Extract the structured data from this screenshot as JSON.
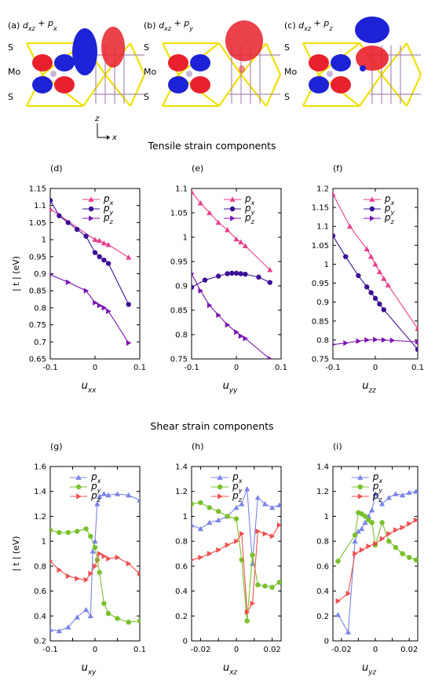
{
  "headings": {
    "tensile": "Tensile strain components",
    "shear": "Shear strain components"
  },
  "orbital_panels": [
    {
      "letter": "(a)",
      "label": "d",
      "sub": "xz",
      "plus": " + p",
      "psub": "x"
    },
    {
      "letter": "(b)",
      "label": "d",
      "sub": "xz",
      "plus": " + p",
      "psub": "y"
    },
    {
      "letter": "(c)",
      "label": "d",
      "sub": "xz",
      "plus": " + p",
      "psub": "z"
    }
  ],
  "atom_labels": [
    "S",
    "Mo",
    "S"
  ],
  "axes_indicator": {
    "z": "z",
    "x": "x"
  },
  "colors": {
    "px": "#ea3d8c",
    "py": "#3c1096",
    "pz": "#7a14b0",
    "px_shear": "#7b84e8",
    "py_shear": "#79c12c",
    "pz_shear": "#f04e4e",
    "lobe_red": "#e8212c",
    "lobe_blue": "#1e22d6",
    "bond_yellow": "#f0e000",
    "bond_purple": "#a98ab8"
  },
  "chart_data": [
    {
      "panel": "(d)",
      "type": "line",
      "xlabel_main": "u",
      "xlabel_sub": "xx",
      "ylabel": "| t | (eV)",
      "xlim": [
        -0.1,
        0.1
      ],
      "ylim": [
        0.65,
        1.15
      ],
      "xticks": [
        -0.1,
        0,
        0.1
      ],
      "xtick_labels": [
        "-0.1",
        "0",
        "0.1"
      ],
      "yticks": [
        0.65,
        0.7,
        0.75,
        0.8,
        0.85,
        0.9,
        0.95,
        1,
        1.05,
        1.1,
        1.15
      ],
      "ytick_labels": [
        "0.65",
        "0.7",
        "0.75",
        "0.8",
        "0.85",
        "0.9",
        "0.95",
        "1",
        "1.05",
        "1.1",
        "1.15"
      ],
      "legend": "top-right",
      "series": [
        {
          "name": "p",
          "sub": "x",
          "marker": "tri-up",
          "color": "#ea3d8c",
          "x": [
            -0.1,
            0,
            0.01,
            0.02,
            0.03,
            0.075
          ],
          "y": [
            1.09,
            1.0,
            0.997,
            0.99,
            0.985,
            0.948
          ]
        },
        {
          "name": "p",
          "sub": "y",
          "marker": "circle",
          "color": "#3c1096",
          "x": [
            -0.1,
            -0.08,
            -0.06,
            -0.04,
            -0.02,
            0,
            0.01,
            0.02,
            0.03,
            0.075
          ],
          "y": [
            1.115,
            1.07,
            1.05,
            1.03,
            1.01,
            0.962,
            0.95,
            0.94,
            0.93,
            0.81
          ]
        },
        {
          "name": "p",
          "sub": "z",
          "marker": "tri-right",
          "color": "#7a14b0",
          "x": [
            -0.1,
            -0.06,
            -0.02,
            0,
            0.01,
            0.02,
            0.03,
            0.075
          ],
          "y": [
            0.897,
            0.875,
            0.85,
            0.815,
            0.807,
            0.8,
            0.79,
            0.697
          ]
        }
      ]
    },
    {
      "panel": "(e)",
      "type": "line",
      "xlabel_main": "u",
      "xlabel_sub": "yy",
      "ylabel": "",
      "xlim": [
        -0.1,
        0.1
      ],
      "ylim": [
        0.75,
        1.1
      ],
      "xticks": [
        -0.1,
        0,
        0.1
      ],
      "xtick_labels": [
        "-0.1",
        "0",
        "0.1"
      ],
      "yticks": [
        0.75,
        0.8,
        0.85,
        0.9,
        0.95,
        1,
        1.05,
        1.1
      ],
      "ytick_labels": [
        "0.75",
        "0.8",
        "0.85",
        "0.9",
        "0.95",
        "1",
        "1.05",
        "1.1"
      ],
      "legend": "top-right",
      "series": [
        {
          "name": "p",
          "sub": "x",
          "marker": "tri-up",
          "color": "#ea3d8c",
          "x": [
            -0.1,
            -0.08,
            -0.06,
            -0.04,
            -0.02,
            0,
            0.01,
            0.02,
            0.075
          ],
          "y": [
            1.093,
            1.07,
            1.05,
            1.03,
            1.015,
            0.996,
            0.99,
            0.982,
            0.933
          ]
        },
        {
          "name": "p",
          "sub": "y",
          "marker": "circle",
          "color": "#3c1096",
          "x": [
            -0.1,
            -0.07,
            -0.04,
            -0.02,
            -0.01,
            0,
            0.01,
            0.02,
            0.05,
            0.075
          ],
          "y": [
            0.897,
            0.912,
            0.92,
            0.925,
            0.926,
            0.926,
            0.925,
            0.924,
            0.918,
            0.907
          ]
        },
        {
          "name": "p",
          "sub": "z",
          "marker": "tri-right",
          "color": "#7a14b0",
          "x": [
            -0.1,
            -0.08,
            -0.06,
            -0.04,
            -0.02,
            0,
            0.01,
            0.02,
            0.075
          ],
          "y": [
            0.925,
            0.89,
            0.86,
            0.84,
            0.82,
            0.805,
            0.797,
            0.792,
            0.75
          ]
        }
      ]
    },
    {
      "panel": "(f)",
      "type": "line",
      "xlabel_main": "u",
      "xlabel_sub": "zz",
      "ylabel": "",
      "xlim": [
        -0.1,
        0.1
      ],
      "ylim": [
        0.75,
        1.2
      ],
      "xticks": [
        -0.1,
        0,
        0.1
      ],
      "xtick_labels": [
        "-0.1",
        "0",
        "0.1"
      ],
      "yticks": [
        0.75,
        0.8,
        0.85,
        0.9,
        0.95,
        1,
        1.05,
        1.1,
        1.15,
        1.2
      ],
      "ytick_labels": [
        "0.75",
        "0.8",
        "0.85",
        "0.9",
        "0.95",
        "1",
        "1.05",
        "1.1",
        "1.15",
        "1.2"
      ],
      "legend": "top-right",
      "series": [
        {
          "name": "p",
          "sub": "x",
          "marker": "tri-up",
          "color": "#ea3d8c",
          "x": [
            -0.1,
            -0.06,
            -0.02,
            -0.01,
            0,
            0.01,
            0.02,
            0.03,
            0.1
          ],
          "y": [
            1.185,
            1.1,
            1.04,
            1.02,
            1.0,
            0.98,
            0.962,
            0.945,
            0.83
          ]
        },
        {
          "name": "p",
          "sub": "y",
          "marker": "circle",
          "color": "#3c1096",
          "x": [
            -0.1,
            -0.07,
            -0.04,
            -0.02,
            -0.01,
            0,
            0.01,
            0.02,
            0.1
          ],
          "y": [
            1.075,
            1.02,
            0.97,
            0.94,
            0.925,
            0.91,
            0.895,
            0.88,
            0.775
          ]
        },
        {
          "name": "p",
          "sub": "z",
          "marker": "tri-right",
          "color": "#7a14b0",
          "x": [
            -0.1,
            -0.07,
            -0.04,
            -0.02,
            0,
            0.02,
            0.04,
            0.1
          ],
          "y": [
            0.788,
            0.792,
            0.797,
            0.8,
            0.801,
            0.8,
            0.799,
            0.795
          ]
        }
      ]
    },
    {
      "panel": "(g)",
      "type": "line",
      "xlabel_main": "u",
      "xlabel_sub": "xy",
      "ylabel": "| t | (eV)",
      "xlim": [
        -0.1,
        0.1
      ],
      "ylim": [
        0.2,
        1.6
      ],
      "xticks": [
        -0.1,
        -0.05,
        0,
        0.05,
        0.1
      ],
      "xtick_labels": [
        "-0.1",
        "",
        "0",
        "",
        "0.1"
      ],
      "yticks": [
        0.2,
        0.4,
        0.6,
        0.8,
        1.0,
        1.2,
        1.4,
        1.6
      ],
      "ytick_labels": [
        "0.2",
        "0.4",
        "0.6",
        "0.8",
        "1",
        "1.2",
        "1.4",
        "1.6"
      ],
      "legend": "top-center",
      "series": [
        {
          "name": "p",
          "sub": "x",
          "marker": "tri-up",
          "color": "#7b84e8",
          "x": [
            -0.1,
            -0.08,
            -0.06,
            -0.04,
            -0.02,
            -0.01,
            -0.005,
            0,
            0.005,
            0.01,
            0.02,
            0.03,
            0.05,
            0.075,
            0.1
          ],
          "y": [
            0.29,
            0.28,
            0.31,
            0.39,
            0.45,
            0.4,
            0.92,
            1.0,
            1.3,
            1.36,
            1.38,
            1.37,
            1.38,
            1.37,
            1.33
          ]
        },
        {
          "name": "p",
          "sub": "y",
          "marker": "circle",
          "color": "#79c12c",
          "x": [
            -0.1,
            -0.08,
            -0.06,
            -0.04,
            -0.02,
            -0.01,
            0,
            0.005,
            0.01,
            0.02,
            0.03,
            0.05,
            0.075,
            0.1
          ],
          "y": [
            1.09,
            1.07,
            1.07,
            1.08,
            1.1,
            1.04,
            0.95,
            0.85,
            0.75,
            0.5,
            0.42,
            0.38,
            0.35,
            0.36
          ]
        },
        {
          "name": "p",
          "sub": "z",
          "marker": "tri-right",
          "color": "#f04e4e",
          "x": [
            -0.1,
            -0.08,
            -0.06,
            -0.04,
            -0.02,
            -0.01,
            0,
            0.01,
            0.02,
            0.03,
            0.05,
            0.075,
            0.1
          ],
          "y": [
            0.84,
            0.77,
            0.72,
            0.7,
            0.69,
            0.74,
            0.8,
            0.9,
            0.88,
            0.86,
            0.87,
            0.82,
            0.74
          ]
        }
      ]
    },
    {
      "panel": "(h)",
      "type": "line",
      "xlabel_main": "u",
      "xlabel_sub": "xz",
      "ylabel": "",
      "xlim": [
        -0.025,
        0.025
      ],
      "ylim": [
        0,
        1.4
      ],
      "xticks": [
        -0.02,
        -0.01,
        0,
        0.01,
        0.02
      ],
      "xtick_labels": [
        "-0.02",
        "",
        "0",
        "",
        "0.02"
      ],
      "yticks": [
        0,
        0.2,
        0.4,
        0.6,
        0.8,
        1.0,
        1.2,
        1.4
      ],
      "ytick_labels": [
        "0",
        "0.2",
        "0.4",
        "0.6",
        "0.8",
        "1",
        "1.2",
        "1.4"
      ],
      "legend": "top-center",
      "series": [
        {
          "name": "p",
          "sub": "x",
          "marker": "tri-up",
          "color": "#7b84e8",
          "x": [
            -0.025,
            -0.02,
            -0.015,
            -0.01,
            -0.005,
            0.0,
            0.003,
            0.006,
            0.009,
            0.012,
            0.016,
            0.02,
            0.024
          ],
          "y": [
            0.93,
            0.9,
            0.95,
            0.97,
            1.0,
            1.07,
            1.1,
            1.22,
            0.62,
            1.15,
            1.1,
            1.07,
            1.09
          ]
        },
        {
          "name": "p",
          "sub": "y",
          "marker": "circle",
          "color": "#79c12c",
          "x": [
            -0.025,
            -0.02,
            -0.015,
            -0.01,
            -0.005,
            0.0,
            0.003,
            0.006,
            0.009,
            0.012,
            0.016,
            0.02,
            0.024
          ],
          "y": [
            1.1,
            1.11,
            1.07,
            1.04,
            1.0,
            0.98,
            0.65,
            0.16,
            0.69,
            0.45,
            0.44,
            0.43,
            0.47
          ]
        },
        {
          "name": "p",
          "sub": "z",
          "marker": "tri-right",
          "color": "#f04e4e",
          "x": [
            -0.025,
            -0.02,
            -0.015,
            -0.01,
            -0.005,
            0.0,
            0.003,
            0.006,
            0.009,
            0.012,
            0.016,
            0.02,
            0.024
          ],
          "y": [
            0.65,
            0.67,
            0.7,
            0.73,
            0.77,
            0.8,
            0.86,
            0.23,
            0.3,
            0.88,
            0.86,
            0.84,
            0.93
          ]
        }
      ]
    },
    {
      "panel": "(i)",
      "type": "line",
      "xlabel_main": "u",
      "xlabel_sub": "yz",
      "ylabel": "",
      "xlim": [
        -0.025,
        0.025
      ],
      "ylim": [
        0,
        1.4
      ],
      "xticks": [
        -0.02,
        -0.01,
        0,
        0.01,
        0.02
      ],
      "xtick_labels": [
        "-0.02",
        "",
        "0",
        "",
        "0.02"
      ],
      "yticks": [
        0,
        0.2,
        0.4,
        0.6,
        0.8,
        1.0,
        1.2,
        1.4
      ],
      "ytick_labels": [
        "0",
        "0.2",
        "0.4",
        "0.6",
        "0.8",
        "1",
        "1.2",
        "1.4"
      ],
      "legend": "top-center",
      "series": [
        {
          "name": "p",
          "sub": "x",
          "marker": "tri-up",
          "color": "#7b84e8",
          "x": [
            -0.022,
            -0.016,
            -0.012,
            -0.01,
            -0.008,
            -0.006,
            -0.004,
            -0.002,
            0.0,
            0.004,
            0.008,
            0.012,
            0.016,
            0.02,
            0.024
          ],
          "y": [
            0.21,
            0.07,
            0.8,
            0.88,
            0.9,
            0.95,
            1.0,
            1.05,
            1.18,
            1.1,
            1.15,
            1.18,
            1.17,
            1.19,
            1.2
          ]
        },
        {
          "name": "p",
          "sub": "y",
          "marker": "circle",
          "color": "#79c12c",
          "x": [
            -0.022,
            -0.012,
            -0.01,
            -0.008,
            -0.006,
            -0.004,
            -0.002,
            0.0,
            0.004,
            0.008,
            0.012,
            0.016,
            0.02,
            0.024
          ],
          "y": [
            0.64,
            0.85,
            1.03,
            1.02,
            1.0,
            0.97,
            0.95,
            0.77,
            0.95,
            0.8,
            0.75,
            0.7,
            0.67,
            0.65
          ]
        },
        {
          "name": "p",
          "sub": "z",
          "marker": "tri-right",
          "color": "#f04e4e",
          "x": [
            -0.022,
            -0.016,
            -0.012,
            -0.008,
            -0.004,
            0.0,
            0.004,
            0.008,
            0.012,
            0.016,
            0.02,
            0.024
          ],
          "y": [
            0.32,
            0.38,
            0.7,
            0.73,
            0.76,
            0.78,
            0.82,
            0.86,
            0.89,
            0.91,
            0.94,
            0.97
          ]
        }
      ]
    }
  ]
}
